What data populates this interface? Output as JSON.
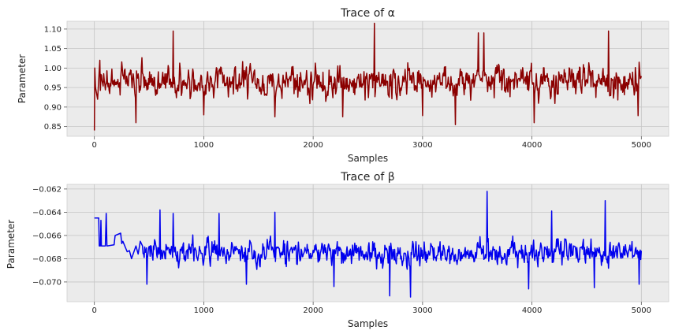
{
  "chart_data": [
    {
      "type": "line",
      "title": "Trace of α",
      "xlabel": "Samples",
      "ylabel": "Parameter",
      "xlim": [
        -250,
        5250
      ],
      "ylim": [
        0.825,
        1.12
      ],
      "xticks": [
        0,
        1000,
        2000,
        3000,
        4000,
        5000
      ],
      "xtick_labels": [
        "0",
        "1000",
        "2000",
        "3000",
        "4000",
        "5000"
      ],
      "yticks": [
        0.85,
        0.9,
        0.95,
        1.0,
        1.05,
        1.1
      ],
      "ytick_labels": [
        "0.85",
        "0.90",
        "0.95",
        "1.00",
        "1.05",
        "1.10"
      ],
      "grid": true,
      "line_color": "#8b0000",
      "trace": {
        "n": 5000,
        "start": [
          [
            0,
            0.84
          ],
          [
            4,
            1.0
          ],
          [
            10,
            0.95
          ],
          [
            30,
            0.92
          ],
          [
            50,
            1.02
          ]
        ],
        "mean": 0.965,
        "spread": 0.035,
        "min": 0.855,
        "max": 1.115,
        "extremes": [
          [
            380,
            0.86
          ],
          [
            720,
            1.095
          ],
          [
            1000,
            0.88
          ],
          [
            1650,
            0.875
          ],
          [
            2270,
            0.875
          ],
          [
            2560,
            1.115
          ],
          [
            3000,
            0.878
          ],
          [
            3300,
            0.855
          ],
          [
            3510,
            1.09
          ],
          [
            3560,
            1.09
          ],
          [
            4020,
            0.86
          ],
          [
            4700,
            1.095
          ],
          [
            4970,
            0.878
          ]
        ]
      }
    },
    {
      "type": "line",
      "title": "Trace of β",
      "xlabel": "Samples",
      "ylabel": "Parameter",
      "xlim": [
        -250,
        5250
      ],
      "ylim": [
        -0.0717,
        -0.0616
      ],
      "xticks": [
        0,
        1000,
        2000,
        3000,
        4000,
        5000
      ],
      "xtick_labels": [
        "0",
        "1000",
        "2000",
        "3000",
        "4000",
        "5000"
      ],
      "yticks": [
        -0.062,
        -0.064,
        -0.066,
        -0.068,
        -0.07
      ],
      "ytick_labels": [
        "−0.062",
        "−0.064",
        "−0.066",
        "−0.068",
        "−0.070"
      ],
      "grid": true,
      "line_color": "#0000ee",
      "trace": {
        "n": 5000,
        "start": [
          [
            0,
            -0.0645
          ],
          [
            40,
            -0.0645
          ],
          [
            45,
            -0.0669
          ],
          [
            55,
            -0.0669
          ],
          [
            60,
            -0.0647
          ],
          [
            64,
            -0.0669
          ],
          [
            100,
            -0.0669
          ],
          [
            108,
            -0.0641
          ],
          [
            115,
            -0.0669
          ],
          [
            180,
            -0.0668
          ],
          [
            190,
            -0.066
          ],
          [
            240,
            -0.0658
          ],
          [
            250,
            -0.0667
          ],
          [
            260,
            -0.0665
          ],
          [
            300,
            -0.0674
          ],
          [
            320,
            -0.0673
          ],
          [
            340,
            -0.068
          ],
          [
            380,
            -0.0669
          ],
          [
            400,
            -0.0676
          ],
          [
            420,
            -0.0665
          ],
          [
            440,
            -0.0669
          ]
        ],
        "mean": -0.0675,
        "spread": 0.00085,
        "min": -0.0713,
        "max": -0.0622,
        "extremes": [
          [
            480,
            -0.0702
          ],
          [
            600,
            -0.0638
          ],
          [
            720,
            -0.0641
          ],
          [
            1140,
            -0.0641
          ],
          [
            1390,
            -0.0702
          ],
          [
            1650,
            -0.064
          ],
          [
            2190,
            -0.0704
          ],
          [
            2700,
            -0.0712
          ],
          [
            2890,
            -0.0713
          ],
          [
            3590,
            -0.0622
          ],
          [
            3970,
            -0.0706
          ],
          [
            4180,
            -0.0639
          ],
          [
            4570,
            -0.0705
          ],
          [
            4670,
            -0.063
          ],
          [
            4980,
            -0.0702
          ]
        ]
      }
    }
  ]
}
